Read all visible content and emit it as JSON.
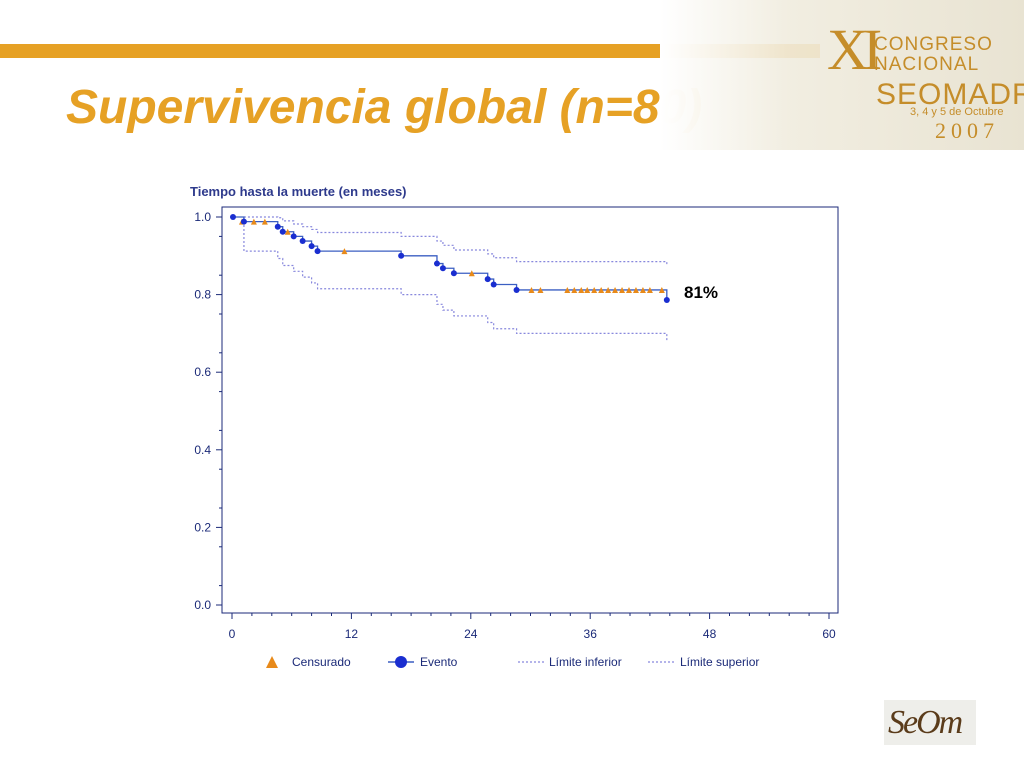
{
  "slide": {
    "title": "Supervivencia global (n=80)",
    "accent_color": "#e6a125"
  },
  "congress": {
    "roman": "XI",
    "line1": "CONGRESO",
    "line2": "NACIONAL",
    "line3": "SEOMADRID",
    "dates": "3, 4 y 5 de Octubre",
    "year": "2007"
  },
  "logo": {
    "text": "SeOm"
  },
  "annotation": "81%",
  "chart_data": {
    "type": "line",
    "title": "Tiempo hasta la muerte (en meses)",
    "xlabel": "",
    "ylabel": "",
    "xlim": [
      0,
      60
    ],
    "ylim": [
      0,
      1.0
    ],
    "x_ticks": [
      0,
      12,
      24,
      36,
      48,
      60
    ],
    "y_ticks": [
      0.0,
      0.2,
      0.4,
      0.6,
      0.8,
      1.0
    ],
    "y_tick_labels": [
      "0.0",
      "0.2",
      "0.4",
      "0.6",
      "0.8",
      "1.0"
    ],
    "colors": {
      "survival": "#3b5fc2",
      "event": "#1a2ed0",
      "censored": "#e88a1a",
      "limit": "#8888dd"
    },
    "legend": [
      "Censurado",
      "Evento",
      "Límite inferior",
      "Límite superior"
    ],
    "series": [
      {
        "name": "Evento",
        "kind": "survival",
        "x": [
          0,
          1.2,
          4.6,
          5.1,
          6.2,
          7.1,
          8.0,
          8.6,
          17.0,
          20.6,
          21.2,
          22.3,
          25.7,
          26.3,
          28.6,
          43.7
        ],
        "y": [
          1.0,
          0.988,
          0.975,
          0.962,
          0.95,
          0.938,
          0.925,
          0.912,
          0.9,
          0.88,
          0.868,
          0.855,
          0.84,
          0.826,
          0.812,
          0.786
        ]
      },
      {
        "name": "Límite inferior",
        "kind": "limit",
        "x": [
          1.2,
          4.6,
          5.1,
          6.2,
          7.1,
          8.0,
          8.6,
          17.0,
          20.6,
          21.2,
          22.3,
          25.7,
          26.3,
          28.6,
          43.7
        ],
        "y": [
          0.912,
          0.893,
          0.875,
          0.86,
          0.845,
          0.83,
          0.815,
          0.8,
          0.775,
          0.76,
          0.745,
          0.728,
          0.712,
          0.7,
          0.68
        ]
      },
      {
        "name": "Límite superior",
        "kind": "limit",
        "x": [
          1.2,
          4.6,
          5.1,
          6.2,
          7.1,
          8.0,
          8.6,
          17.0,
          20.6,
          21.2,
          22.3,
          25.7,
          26.3,
          28.6,
          43.7
        ],
        "y": [
          1.0,
          0.998,
          0.99,
          0.982,
          0.975,
          0.968,
          0.96,
          0.95,
          0.938,
          0.927,
          0.915,
          0.905,
          0.895,
          0.885,
          0.875
        ]
      }
    ],
    "events": {
      "x": [
        0.1,
        1.2,
        4.6,
        5.1,
        6.2,
        7.1,
        8.0,
        8.6,
        17.0,
        20.6,
        21.2,
        22.3,
        25.7,
        26.3,
        28.6,
        43.7
      ],
      "y": [
        1.0,
        0.988,
        0.975,
        0.962,
        0.95,
        0.938,
        0.925,
        0.912,
        0.9,
        0.88,
        0.868,
        0.855,
        0.84,
        0.826,
        0.812,
        0.786
      ]
    },
    "censored": {
      "x": [
        1.0,
        2.2,
        3.3,
        5.6,
        11.3,
        24.1,
        30.1,
        31.0,
        33.7,
        34.4,
        35.1,
        35.7,
        36.4,
        37.1,
        37.8,
        38.5,
        39.2,
        39.9,
        40.6,
        41.3,
        42.0,
        43.2
      ],
      "y": [
        0.988,
        0.988,
        0.988,
        0.962,
        0.912,
        0.855,
        0.812,
        0.812,
        0.812,
        0.812,
        0.812,
        0.812,
        0.812,
        0.812,
        0.812,
        0.812,
        0.812,
        0.812,
        0.812,
        0.812,
        0.812,
        0.812
      ]
    }
  }
}
